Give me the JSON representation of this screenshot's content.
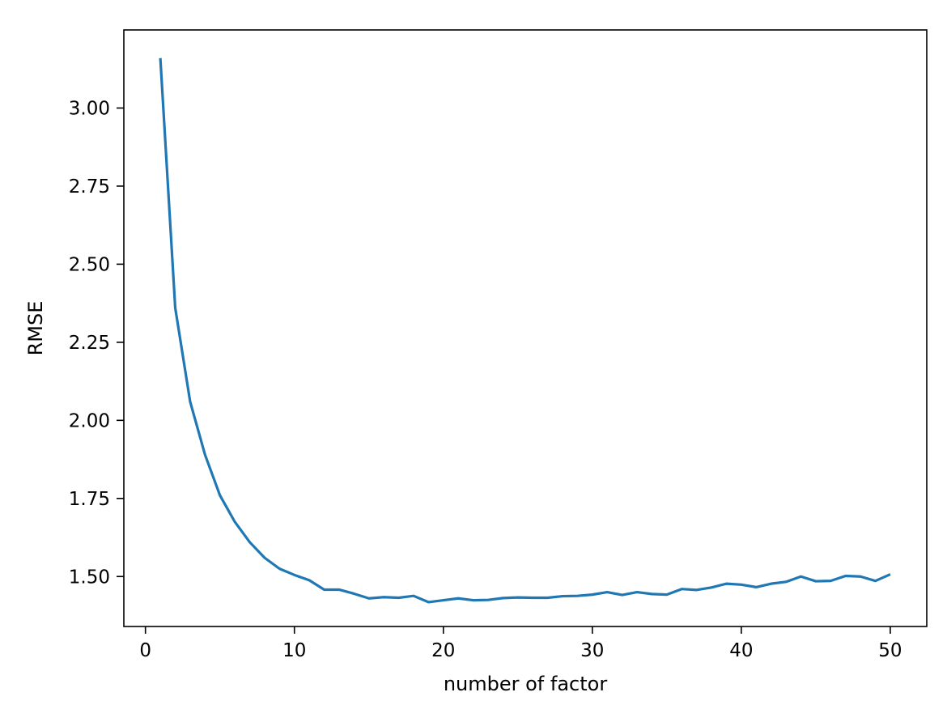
{
  "chart_data": {
    "type": "line",
    "title": "",
    "xlabel": "number of factor",
    "ylabel": "RMSE",
    "xlim": [
      -1.45,
      52.45
    ],
    "ylim": [
      1.34,
      3.25
    ],
    "xticks": [
      0,
      10,
      20,
      30,
      40,
      50
    ],
    "xtick_labels": [
      "0",
      "10",
      "20",
      "30",
      "40",
      "50"
    ],
    "yticks": [
      1.5,
      1.75,
      2.0,
      2.25,
      2.5,
      2.75,
      3.0
    ],
    "ytick_labels": [
      "1.50",
      "1.75",
      "2.00",
      "2.25",
      "2.50",
      "2.75",
      "3.00"
    ],
    "grid": false,
    "legend": "none",
    "series": [
      {
        "color": "#1f77b4",
        "x": [
          1,
          2,
          3,
          4,
          5,
          6,
          7,
          8,
          9,
          10,
          11,
          12,
          13,
          14,
          15,
          16,
          17,
          18,
          19,
          20,
          21,
          22,
          23,
          24,
          25,
          26,
          27,
          28,
          29,
          30,
          31,
          32,
          33,
          34,
          35,
          36,
          37,
          38,
          39,
          40,
          41,
          42,
          43,
          44,
          45,
          46,
          47,
          48,
          49,
          50
        ],
        "y": [
          3.16,
          2.36,
          2.06,
          1.89,
          1.76,
          1.675,
          1.61,
          1.56,
          1.525,
          1.505,
          1.488,
          1.458,
          1.458,
          1.445,
          1.43,
          1.434,
          1.432,
          1.438,
          1.418,
          1.424,
          1.43,
          1.424,
          1.425,
          1.431,
          1.433,
          1.432,
          1.432,
          1.437,
          1.438,
          1.442,
          1.45,
          1.441,
          1.45,
          1.444,
          1.442,
          1.46,
          1.457,
          1.465,
          1.477,
          1.474,
          1.466,
          1.477,
          1.483,
          1.5,
          1.485,
          1.486,
          1.502,
          1.5,
          1.486,
          1.507
        ]
      }
    ]
  }
}
